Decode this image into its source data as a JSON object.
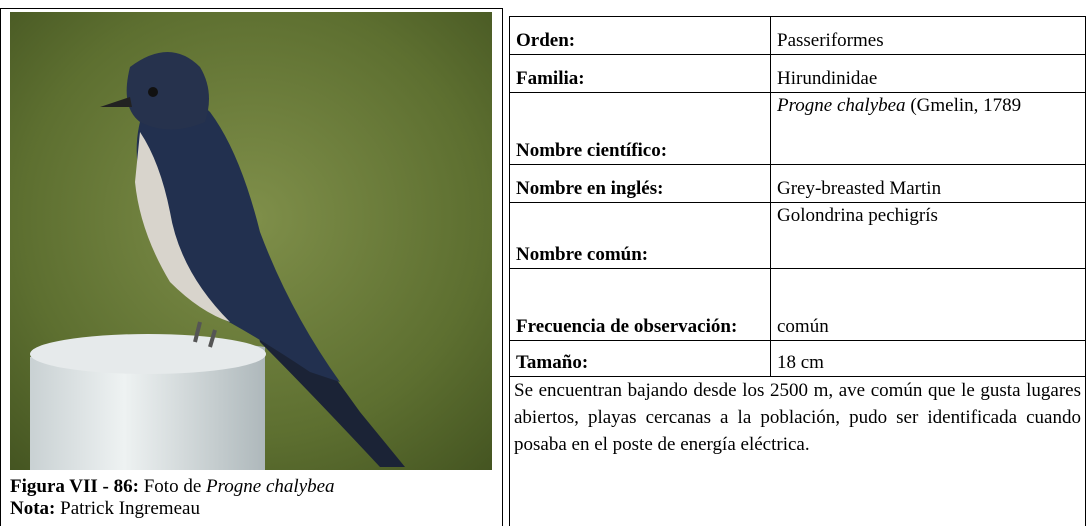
{
  "figure": {
    "caption_label": "Figura VII - 86:",
    "caption_text": "Foto de",
    "caption_species": "Progne chalybea",
    "note_label": "Nota:",
    "note_text": "Patrick Ingremeau"
  },
  "table": {
    "rows": [
      {
        "label": "Orden:",
        "value": "Passeriformes"
      },
      {
        "label": "Familia:",
        "value": "Hirundinidae"
      },
      {
        "label": "Nombre científico:",
        "value_italic": "Progne chalybea",
        "value": "(Gmelin, 1789"
      },
      {
        "label": "Nombre en inglés:",
        "value": "Grey-breasted Martin"
      },
      {
        "label": "Nombre común:",
        "value": "Golondrina pechigrís"
      },
      {
        "label": "Frecuencia de observación:",
        "value": "común"
      },
      {
        "label": "Tamaño:",
        "value": "18 cm"
      }
    ],
    "description": "Se encuentran bajando desde los 2500 m, ave común que le gusta lugares abiertos, playas cercanas a la población, pudo ser identificada cuando posaba en el poste de energía eléctrica."
  }
}
